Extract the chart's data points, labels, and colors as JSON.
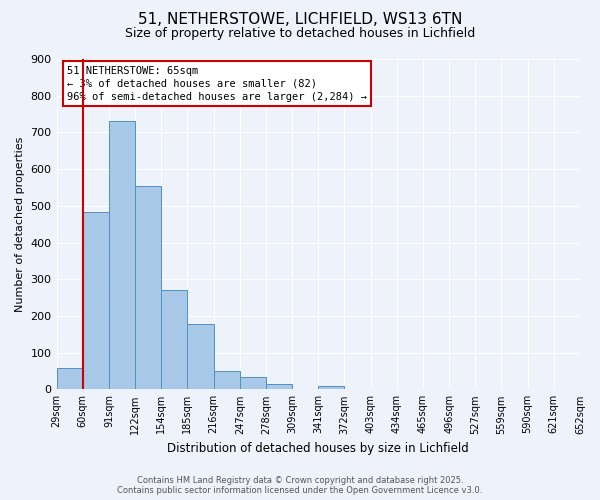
{
  "title": "51, NETHERSTOWE, LICHFIELD, WS13 6TN",
  "subtitle": "Size of property relative to detached houses in Lichfield",
  "xlabel": "Distribution of detached houses by size in Lichfield",
  "ylabel": "Number of detached properties",
  "bar_values": [
    57,
    484,
    730,
    553,
    270,
    178,
    50,
    33,
    15,
    0,
    8,
    0,
    0,
    0,
    0,
    0,
    0,
    0,
    0,
    0
  ],
  "bin_labels": [
    "29sqm",
    "60sqm",
    "91sqm",
    "122sqm",
    "154sqm",
    "185sqm",
    "216sqm",
    "247sqm",
    "278sqm",
    "309sqm",
    "341sqm",
    "372sqm",
    "403sqm",
    "434sqm",
    "465sqm",
    "496sqm",
    "527sqm",
    "559sqm",
    "590sqm",
    "621sqm",
    "652sqm"
  ],
  "bar_color": "#a8c8e8",
  "bar_edge_color": "#5090c0",
  "vline_color": "#cc0000",
  "annotation_text": "51 NETHERSTOWE: 65sqm\n← 3% of detached houses are smaller (82)\n96% of semi-detached houses are larger (2,284) →",
  "annotation_box_color": "#ffffff",
  "annotation_box_edge": "#cc0000",
  "ylim": [
    0,
    900
  ],
  "yticks": [
    0,
    100,
    200,
    300,
    400,
    500,
    600,
    700,
    800,
    900
  ],
  "background_color": "#eef2fb",
  "grid_color": "#ffffff",
  "footer_line1": "Contains HM Land Registry data © Crown copyright and database right 2025.",
  "footer_line2": "Contains public sector information licensed under the Open Government Licence v3.0."
}
